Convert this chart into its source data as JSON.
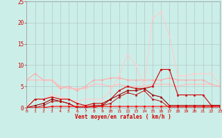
{
  "xlabel": "Vent moyen/en rafales ( km/h )",
  "xlim": [
    0,
    23
  ],
  "ylim": [
    0,
    25
  ],
  "xticks": [
    0,
    1,
    2,
    3,
    4,
    5,
    6,
    7,
    8,
    9,
    10,
    11,
    12,
    13,
    14,
    15,
    16,
    17,
    18,
    19,
    20,
    21,
    22,
    23
  ],
  "yticks": [
    0,
    5,
    10,
    15,
    20,
    25
  ],
  "bg_color": "#cceee8",
  "grid_color": "#aaaaaa",
  "series": [
    {
      "x": [
        0,
        1,
        2,
        3,
        4,
        5,
        6,
        7,
        8,
        9,
        10,
        11,
        12,
        13,
        14,
        15,
        16,
        17,
        18,
        19,
        20,
        21,
        22,
        23
      ],
      "y": [
        6.5,
        8,
        6.5,
        6.5,
        4.5,
        5,
        4,
        5,
        6.5,
        6.5,
        7,
        7,
        6.5,
        6.5,
        6.5,
        6.5,
        6.5,
        7,
        6.5,
        6.5,
        6.5,
        6.5,
        5.5,
        5
      ],
      "color": "#ffaaaa",
      "marker": "D",
      "markersize": 1.5,
      "linewidth": 0.8
    },
    {
      "x": [
        0,
        1,
        2,
        3,
        4,
        5,
        6,
        7,
        8,
        9,
        10,
        11,
        12,
        13,
        14,
        15,
        16,
        17,
        18,
        19,
        20,
        21,
        22,
        23
      ],
      "y": [
        6.5,
        6.5,
        6.5,
        6.5,
        5,
        4.5,
        4.5,
        4.5,
        5.5,
        5.5,
        5,
        5.5,
        5,
        5,
        5,
        5.5,
        5.5,
        5.5,
        5,
        5.5,
        5.5,
        5.5,
        5.5,
        5
      ],
      "color": "#ffbbbb",
      "marker": "D",
      "markersize": 1.5,
      "linewidth": 0.8
    },
    {
      "x": [
        0,
        1,
        2,
        3,
        4,
        5,
        6,
        7,
        8,
        9,
        10,
        11,
        12,
        13,
        14,
        15,
        16,
        17,
        18,
        19,
        20,
        21,
        22,
        23
      ],
      "y": [
        0,
        2,
        2,
        3,
        2.5,
        2,
        1.5,
        2,
        2,
        2,
        4,
        7.5,
        12.5,
        10,
        5,
        21,
        22.5,
        17,
        7.5,
        7.5,
        8,
        8,
        8,
        5.5
      ],
      "color": "#ffcccc",
      "marker": "D",
      "markersize": 1.5,
      "linewidth": 0.8
    },
    {
      "x": [
        0,
        1,
        2,
        3,
        4,
        5,
        6,
        7,
        8,
        9,
        10,
        11,
        12,
        13,
        14,
        15,
        16,
        17,
        18,
        19,
        20,
        21,
        22,
        23
      ],
      "y": [
        0,
        2,
        2,
        2.5,
        2,
        2,
        1,
        0.5,
        1,
        1,
        2,
        4,
        5,
        4.5,
        4.5,
        5,
        9,
        9,
        3,
        3,
        3,
        3,
        0.5,
        0.5
      ],
      "color": "#cc0000",
      "marker": "s",
      "markersize": 1.5,
      "linewidth": 0.8
    },
    {
      "x": [
        0,
        1,
        2,
        3,
        4,
        5,
        6,
        7,
        8,
        9,
        10,
        11,
        12,
        13,
        14,
        15,
        16,
        17,
        18,
        19,
        20,
        21,
        22,
        23
      ],
      "y": [
        0,
        0.5,
        1,
        2,
        1.5,
        1,
        0,
        0,
        0.5,
        0.5,
        2,
        3,
        4,
        4,
        4.5,
        3,
        2.5,
        0.5,
        0.5,
        0.5,
        0.5,
        0.5,
        0.5,
        0.5
      ],
      "color": "#990000",
      "marker": "s",
      "markersize": 1.5,
      "linewidth": 0.8
    },
    {
      "x": [
        0,
        1,
        2,
        3,
        4,
        5,
        6,
        7,
        8,
        9,
        10,
        11,
        12,
        13,
        14,
        15,
        16,
        17,
        18,
        19,
        20,
        21,
        22,
        23
      ],
      "y": [
        0,
        0,
        0.5,
        1.5,
        1.5,
        1,
        0,
        0,
        0,
        0.5,
        1,
        2.5,
        3.5,
        3,
        4,
        2,
        1.5,
        0,
        0,
        0,
        0,
        0,
        0,
        0
      ],
      "color": "#bb1111",
      "marker": "s",
      "markersize": 1.5,
      "linewidth": 0.7
    },
    {
      "x": [
        0,
        1,
        2,
        3,
        4,
        5,
        6,
        7,
        8,
        9,
        10,
        11,
        12,
        13,
        14,
        15,
        16,
        17,
        18,
        19,
        20,
        21,
        22,
        23
      ],
      "y": [
        0,
        0,
        0,
        0.3,
        0.3,
        0.3,
        0.3,
        0.3,
        0.3,
        0.3,
        0.3,
        0.3,
        0.3,
        0.3,
        0.3,
        0.3,
        0.3,
        0.3,
        0.3,
        0.3,
        0.3,
        0.3,
        0.3,
        0.3
      ],
      "color": "#ff0000",
      "marker": "s",
      "markersize": 1.5,
      "linewidth": 0.8
    },
    {
      "x": [
        0,
        1,
        2,
        3,
        4,
        5,
        6,
        7,
        8,
        9,
        10,
        11,
        12,
        13,
        14,
        15,
        16,
        17,
        18,
        19,
        20,
        21,
        22,
        23
      ],
      "y": [
        -0.3,
        -0.3,
        -0.3,
        -0.3,
        -0.3,
        -0.3,
        -0.3,
        -0.3,
        -0.3,
        -0.3,
        -0.3,
        -0.3,
        -0.3,
        -0.3,
        -0.3,
        -0.3,
        -0.3,
        -0.3,
        -0.3,
        -0.3,
        -0.3,
        -0.3,
        -0.3,
        -0.3
      ],
      "color": "#dd0000",
      "marker": "s",
      "markersize": 1.5,
      "linewidth": 0.8
    }
  ]
}
